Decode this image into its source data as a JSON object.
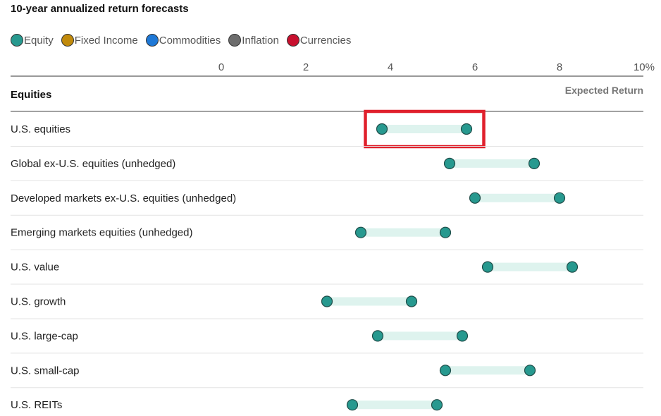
{
  "chart_data": {
    "type": "dumbbell",
    "title": "10-year annualized return forecasts",
    "xlim": [
      0,
      10
    ],
    "ticks": [
      "0",
      "2",
      "4",
      "6",
      "8",
      "10%"
    ],
    "tick_values": [
      0,
      2,
      4,
      6,
      8,
      10
    ],
    "section_title": "Equities",
    "column_label": "Expected Return",
    "legend": [
      {
        "label": "Equity",
        "color": "#27998f"
      },
      {
        "label": "Fixed Income",
        "color": "#c18a0b"
      },
      {
        "label": "Commodities",
        "color": "#1e78d6"
      },
      {
        "label": "Inflation",
        "color": "#6d6d6d"
      },
      {
        "label": "Currencies",
        "color": "#c8102e"
      }
    ],
    "series_color": "#27998f",
    "range_color": "#def3ee",
    "rows": [
      {
        "label": "U.S. equities",
        "low": 3.8,
        "high": 5.8,
        "highlighted": true
      },
      {
        "label": "Global ex-U.S. equities (unhedged)",
        "low": 5.4,
        "high": 7.4
      },
      {
        "label": "Developed markets ex-U.S. equities (unhedged)",
        "low": 6.0,
        "high": 8.0
      },
      {
        "label": "Emerging markets equities (unhedged)",
        "low": 3.3,
        "high": 5.3
      },
      {
        "label": "U.S. value",
        "low": 6.3,
        "high": 8.3
      },
      {
        "label": "U.S. growth",
        "low": 2.5,
        "high": 4.5
      },
      {
        "label": "U.S. large-cap",
        "low": 3.7,
        "high": 5.7
      },
      {
        "label": "U.S. small-cap",
        "low": 5.3,
        "high": 7.3
      },
      {
        "label": "U.S. REITs",
        "low": 3.1,
        "high": 5.1
      }
    ],
    "highlight_color": "#e0202c"
  }
}
